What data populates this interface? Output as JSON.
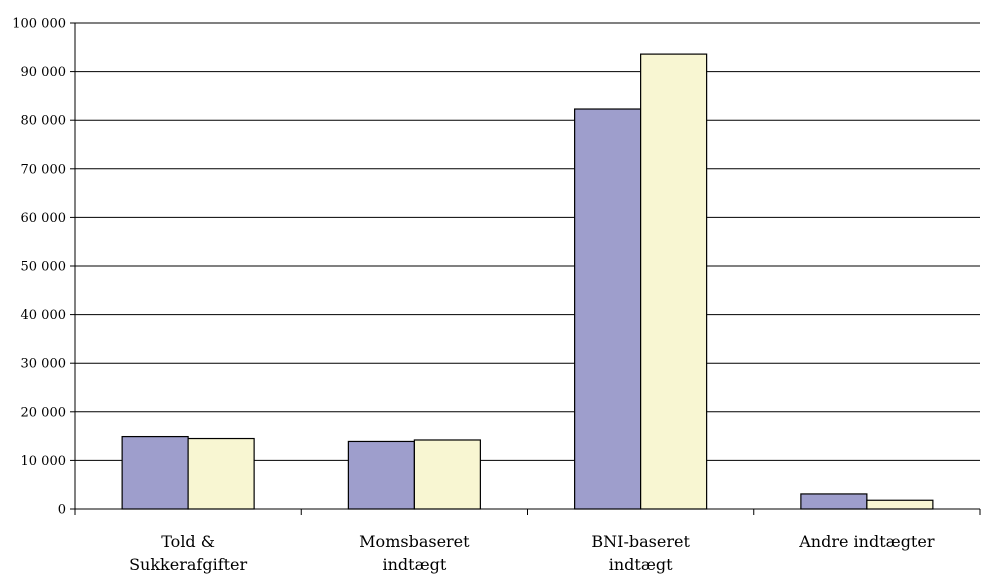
{
  "chart_data": {
    "type": "bar",
    "categories": [
      [
        "Told &",
        "Sukkerafgifter"
      ],
      [
        "Momsbaseret",
        "indtægt"
      ],
      [
        "BNI-baseret",
        "indtægt"
      ],
      [
        "Andre indtægter"
      ]
    ],
    "series": [
      {
        "values": [
          14900,
          13900,
          82300,
          3100
        ],
        "color": "#9e9ecc"
      },
      {
        "values": [
          14500,
          14200,
          93600,
          1800
        ],
        "color": "#f8f6d2"
      }
    ],
    "ylim": [
      0,
      100000
    ],
    "y_ticks": [
      0,
      10000,
      20000,
      30000,
      40000,
      50000,
      60000,
      70000,
      80000,
      90000,
      100000
    ],
    "y_tick_labels": [
      "0",
      "10 000",
      "20 000",
      "30 000",
      "40 000",
      "50 000",
      "60 000",
      "70 000",
      "80 000",
      "90 000",
      "100 000"
    ],
    "grid": true,
    "legend": "none",
    "title": "",
    "xlabel": "",
    "ylabel": ""
  }
}
